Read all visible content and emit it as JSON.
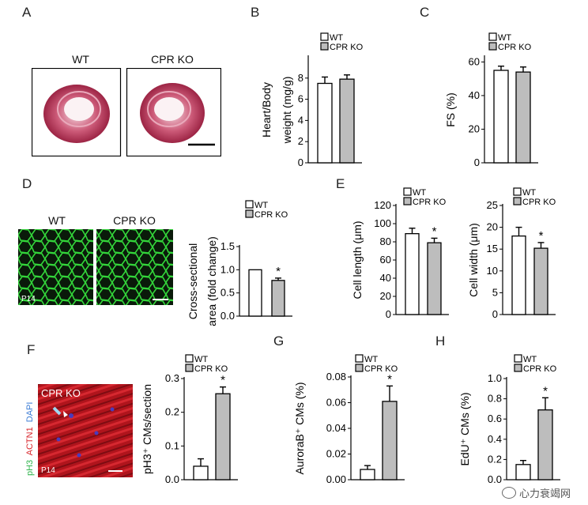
{
  "panels": {
    "A": "A",
    "B": "B",
    "C": "C",
    "D": "D",
    "E": "E",
    "F": "F",
    "G": "G",
    "H": "H"
  },
  "panel_a": {
    "wt": "WT",
    "ko": "CPR KO"
  },
  "panel_d": {
    "wt": "WT",
    "ko": "CPR KO",
    "age": "P14"
  },
  "panel_f": {
    "ko": "CPR KO",
    "age": "P14",
    "stain_ph3": "pH3",
    "stain_actn1": "ACTN1",
    "stain_dapi": "DAPI"
  },
  "legend": {
    "wt": "WT",
    "ko": "CPR KO"
  },
  "colors": {
    "wt_fill": "#ffffff",
    "ko_fill": "#bdbdbd",
    "stroke": "#000000",
    "ph3_label": "#2db34a",
    "actn1_label": "#d9262c",
    "dapi_label": "#3a7bd5"
  },
  "watermark": {
    "text": "心力衰竭网"
  },
  "chart_data": [
    {
      "id": "B",
      "type": "bar",
      "ylabel_lines": [
        "Heart/Body",
        "weight (mg/g)"
      ],
      "categories": [
        "WT",
        "CPR KO"
      ],
      "values": [
        7.5,
        7.9
      ],
      "errors": [
        0.6,
        0.4
      ],
      "ylim": [
        0,
        10
      ],
      "ticks": [
        0,
        2,
        4,
        6,
        8
      ],
      "sig": [
        false,
        false
      ]
    },
    {
      "id": "C",
      "type": "bar",
      "ylabel_lines": [
        "FS (%)"
      ],
      "categories": [
        "WT",
        "CPR KO"
      ],
      "values": [
        55,
        54
      ],
      "errors": [
        2.5,
        3
      ],
      "ylim": [
        0,
        63
      ],
      "ticks": [
        0,
        20,
        40,
        60
      ],
      "sig": [
        false,
        false
      ]
    },
    {
      "id": "D",
      "type": "bar",
      "ylabel_lines": [
        "Cross-sectional",
        "area (fold change)"
      ],
      "categories": [
        "WT",
        "CPR KO"
      ],
      "values": [
        1.0,
        0.77
      ],
      "errors": [
        0,
        0.05
      ],
      "ylim": [
        0,
        1.5
      ],
      "ticks": [
        "0.0",
        "0.5",
        "1.0",
        "1.5"
      ],
      "sig": [
        false,
        true
      ]
    },
    {
      "id": "E1",
      "type": "bar",
      "ylabel_lines": [
        "Cell length (μm)"
      ],
      "categories": [
        "WT",
        "CPR KO"
      ],
      "values": [
        89,
        79
      ],
      "errors": [
        6,
        5
      ],
      "ylim": [
        0,
        120
      ],
      "ticks": [
        0,
        20,
        40,
        60,
        80,
        100,
        120
      ],
      "sig": [
        false,
        true
      ]
    },
    {
      "id": "E2",
      "type": "bar",
      "ylabel_lines": [
        "Cell width (μm)"
      ],
      "categories": [
        "WT",
        "CPR KO"
      ],
      "values": [
        18,
        15.2
      ],
      "errors": [
        2,
        1.3
      ],
      "ylim": [
        0,
        25
      ],
      "ticks": [
        0,
        5,
        10,
        15,
        20,
        25
      ],
      "sig": [
        false,
        true
      ]
    },
    {
      "id": "F",
      "type": "bar",
      "ylabel_lines": [
        "pH3⁺ CMs/section"
      ],
      "categories": [
        "WT",
        "CPR KO"
      ],
      "values": [
        0.04,
        0.255
      ],
      "errors": [
        0.022,
        0.02
      ],
      "ylim": [
        0,
        0.3
      ],
      "ticks": [
        "0.0",
        "0.1",
        "0.2",
        "0.3"
      ],
      "sig": [
        false,
        true
      ]
    },
    {
      "id": "G",
      "type": "bar",
      "ylabel_lines": [
        "AuroraB⁺ CMs (%)"
      ],
      "categories": [
        "WT",
        "CPR KO"
      ],
      "values": [
        0.008,
        0.061
      ],
      "errors": [
        0.003,
        0.012
      ],
      "ylim": [
        0,
        0.08
      ],
      "ticks": [
        "0.00",
        "0.02",
        "0.04",
        "0.06",
        "0.08"
      ],
      "sig": [
        false,
        true
      ]
    },
    {
      "id": "H",
      "type": "bar",
      "ylabel_lines": [
        "EdU⁺ CMs (%)"
      ],
      "categories": [
        "WT",
        "CPR KO"
      ],
      "values": [
        0.15,
        0.69
      ],
      "errors": [
        0.04,
        0.12
      ],
      "ylim": [
        0,
        1.0
      ],
      "ticks": [
        "0.0",
        "0.2",
        "0.4",
        "0.6",
        "0.8",
        "1.0"
      ],
      "sig": [
        false,
        true
      ]
    }
  ]
}
